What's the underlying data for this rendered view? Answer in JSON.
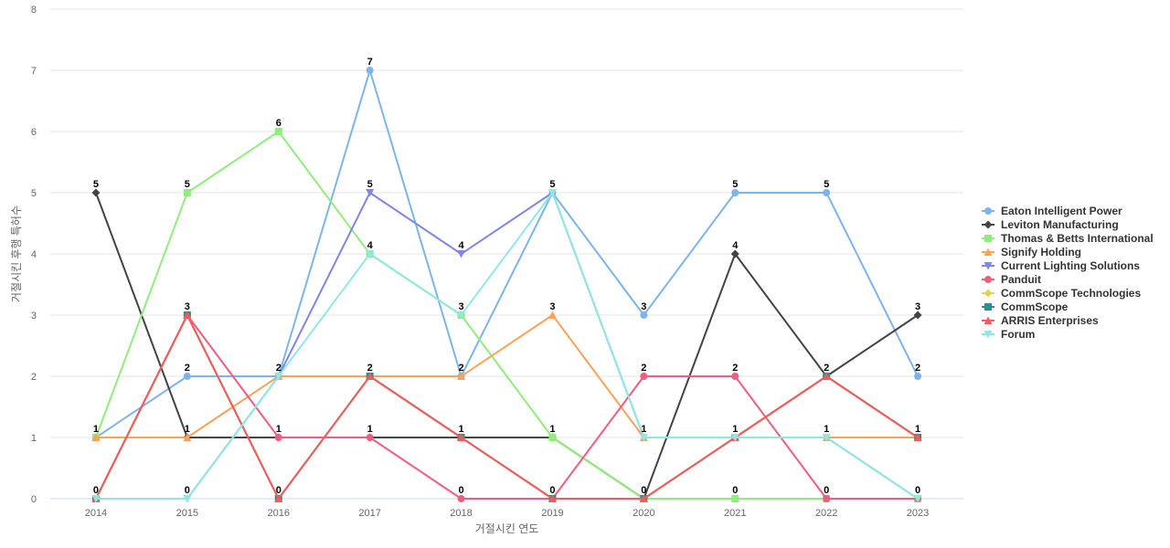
{
  "chart_data": {
    "type": "line",
    "xlabel": "거절시킨 연도",
    "ylabel": "거절시킨 후행 특허수",
    "ylim": [
      0,
      8
    ],
    "yticks": [
      0,
      1,
      2,
      3,
      4,
      5,
      6,
      7,
      8
    ],
    "grid": true,
    "legend_position": "right",
    "categories": [
      "2014",
      "2015",
      "2016",
      "2017",
      "2018",
      "2019",
      "2020",
      "2021",
      "2022",
      "2023"
    ],
    "series": [
      {
        "name": "Eaton Intelligent Power",
        "color": "#7cb5ec",
        "marker": "circle",
        "values": [
          1,
          2,
          2,
          7,
          2,
          5,
          3,
          5,
          5,
          2
        ]
      },
      {
        "name": "Leviton Manufacturing",
        "color": "#434348",
        "marker": "diamond",
        "values": [
          5,
          1,
          1,
          1,
          1,
          1,
          0,
          4,
          2,
          3
        ]
      },
      {
        "name": "Thomas & Betts International",
        "color": "#90ed7d",
        "marker": "square",
        "values": [
          1,
          5,
          6,
          4,
          3,
          1,
          0,
          0,
          0,
          0
        ]
      },
      {
        "name": "Signify Holding",
        "color": "#f7a35c",
        "marker": "triangle",
        "values": [
          1,
          1,
          2,
          2,
          2,
          3,
          1,
          1,
          1,
          1
        ]
      },
      {
        "name": "Current Lighting Solutions",
        "color": "#8085e9",
        "marker": "triangle-down",
        "values": [
          0,
          0,
          2,
          5,
          4,
          5,
          1,
          1,
          1,
          0
        ]
      },
      {
        "name": "Panduit",
        "color": "#f15c80",
        "marker": "circle",
        "values": [
          0,
          3,
          1,
          1,
          0,
          0,
          2,
          2,
          0,
          0
        ]
      },
      {
        "name": "CommScope Technologies",
        "color": "#e4d354",
        "marker": "diamond",
        "values": [
          0,
          3,
          0,
          2,
          1,
          0,
          0,
          1,
          2,
          1
        ]
      },
      {
        "name": "CommScope",
        "color": "#2b908f",
        "marker": "square",
        "values": [
          0,
          3,
          0,
          2,
          1,
          0,
          0,
          1,
          2,
          1
        ]
      },
      {
        "name": "ARRIS Enterprises",
        "color": "#f45b5b",
        "marker": "triangle",
        "values": [
          0,
          3,
          0,
          2,
          1,
          0,
          0,
          1,
          2,
          1
        ]
      },
      {
        "name": "Forum",
        "color": "#91e8e1",
        "marker": "triangle-down",
        "values": [
          0,
          0,
          2,
          4,
          3,
          5,
          1,
          1,
          1,
          0
        ]
      }
    ],
    "data_labels": [
      {
        "x": "2014",
        "values": [
          "5",
          "1",
          "0"
        ]
      },
      {
        "x": "2015",
        "values": [
          "5",
          "3",
          "2",
          "1",
          "0"
        ]
      },
      {
        "x": "2016",
        "values": [
          "6",
          "2",
          "1",
          "0"
        ]
      },
      {
        "x": "2017",
        "values": [
          "7",
          "5",
          "4",
          "2",
          "1"
        ]
      },
      {
        "x": "2018",
        "values": [
          "4",
          "3",
          "2",
          "1",
          "0"
        ]
      },
      {
        "x": "2019",
        "values": [
          "5",
          "3",
          "1",
          "0"
        ]
      },
      {
        "x": "2020",
        "values": [
          "3",
          "2",
          "1",
          "0"
        ]
      },
      {
        "x": "2021",
        "values": [
          "5",
          "4",
          "2",
          "1",
          "0"
        ]
      },
      {
        "x": "2022",
        "values": [
          "5",
          "2",
          "1",
          "0"
        ]
      },
      {
        "x": "2023",
        "values": [
          "3",
          "2",
          "1",
          "0"
        ]
      }
    ]
  }
}
